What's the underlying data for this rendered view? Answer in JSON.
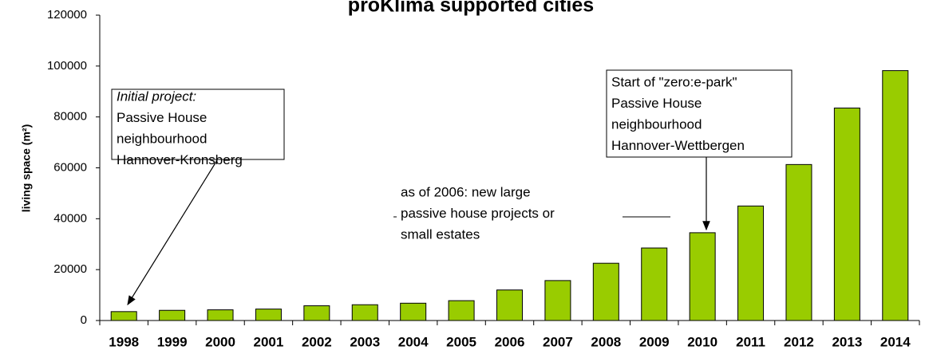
{
  "chart_data": {
    "type": "bar",
    "title": "proKlima supported cities",
    "y_label": "living space (m²)",
    "categories": [
      "1998",
      "1999",
      "2000",
      "2001",
      "2002",
      "2003",
      "2004",
      "2005",
      "2006",
      "2007",
      "2008",
      "2009",
      "2010",
      "2011",
      "2012",
      "2013",
      "2014"
    ],
    "values": [
      3500,
      4000,
      4200,
      4500,
      5800,
      6200,
      6800,
      7800,
      12000,
      15700,
      22500,
      28500,
      34500,
      45000,
      61300,
      83500,
      98200
    ],
    "color": "#99cc00",
    "ylim": [
      0,
      120000
    ],
    "yticks": [
      0,
      20000,
      40000,
      60000,
      80000,
      100000,
      120000
    ],
    "grid": false,
    "annotations": [
      {
        "lines": [
          "Initial project:",
          "Passive House",
          "neighbourhood",
          "Hannover-Kronsberg"
        ]
      },
      {
        "lines": [
          "Start of \"zero:e-park\"",
          "Passive House",
          "neighbourhood",
          "Hannover-Wettbergen"
        ]
      },
      {
        "lines": [
          "as of 2006: new large",
          "passive house projects or",
          "small estates"
        ]
      }
    ]
  }
}
